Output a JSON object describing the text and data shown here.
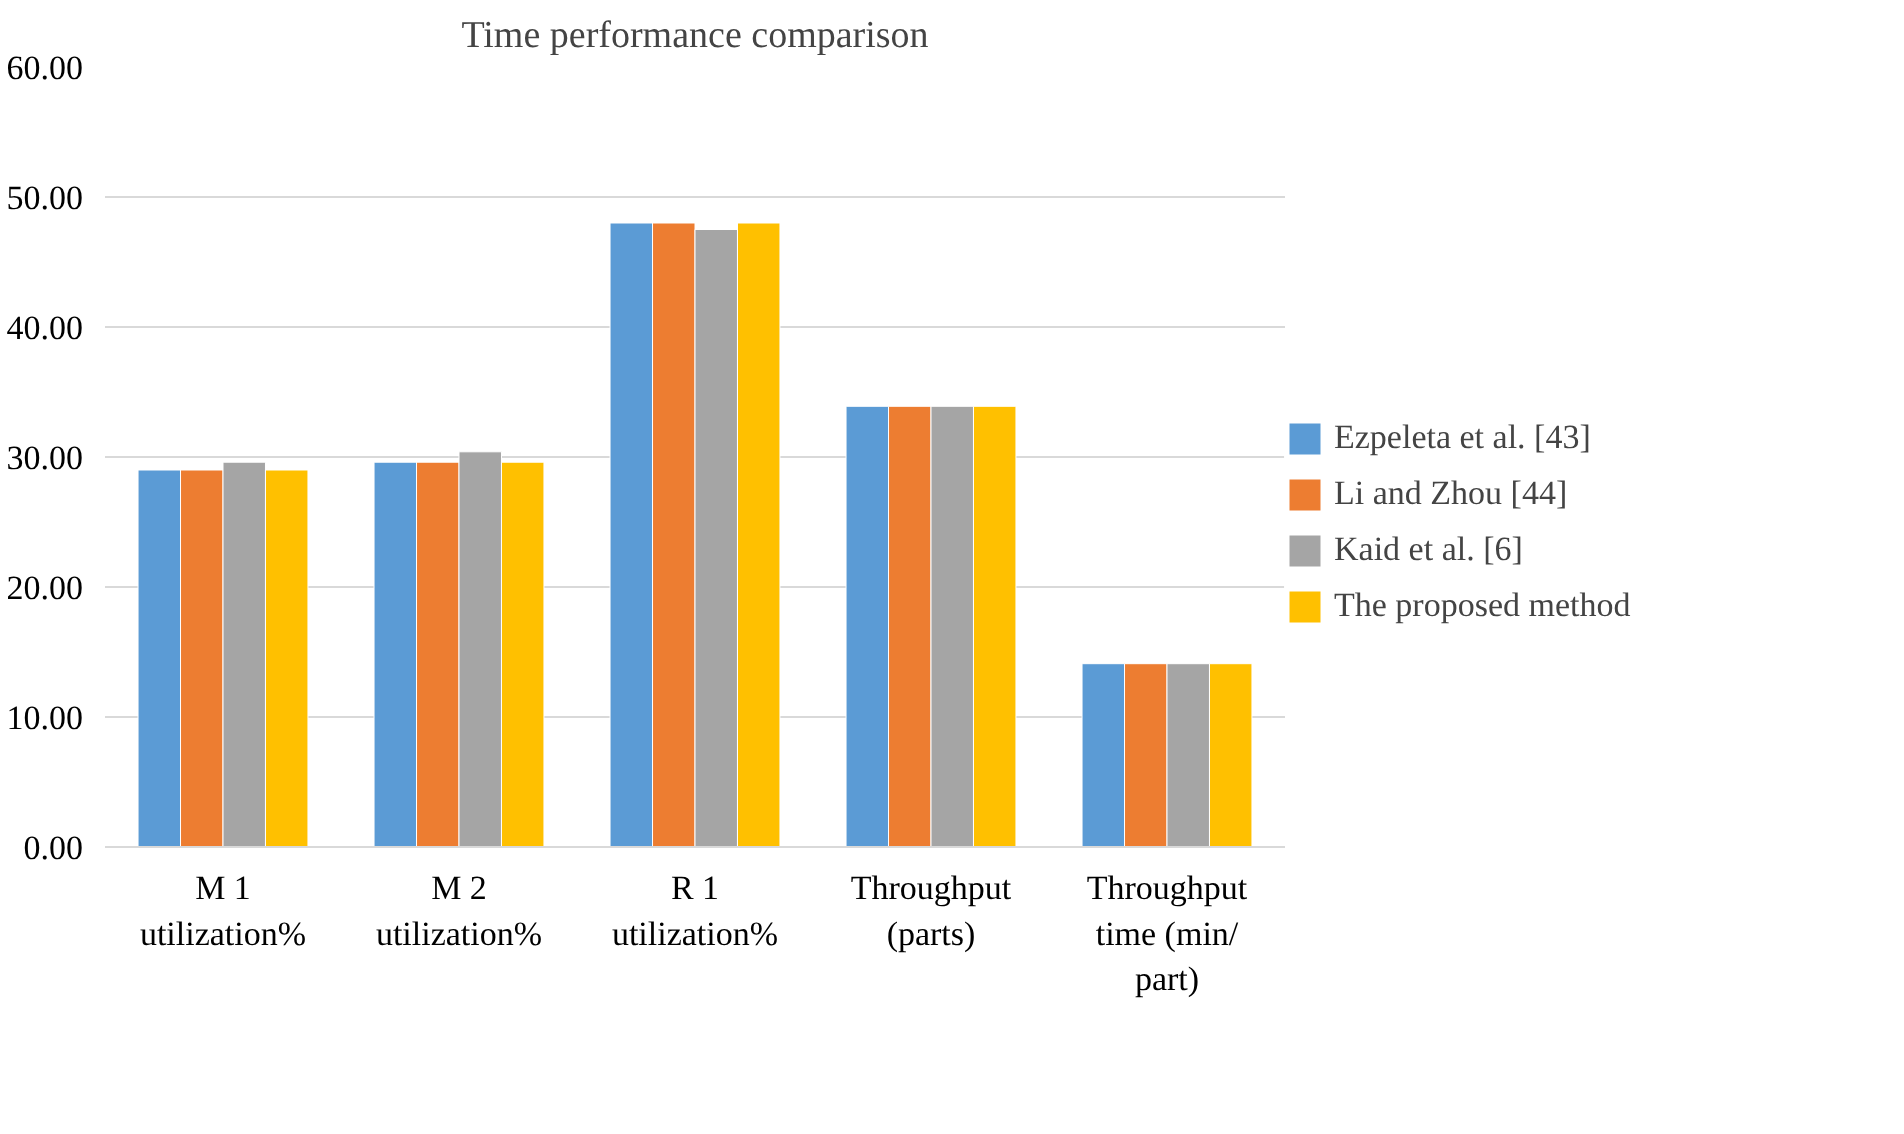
{
  "chart_data": {
    "type": "bar",
    "title": "Time performance comparison",
    "categories": [
      "M 1\nutilization%",
      "M 2\nutilization%",
      "R 1\nutilization%",
      "Throughput\n(parts)",
      "Throughput\ntime (min/\npart)"
    ],
    "series": [
      {
        "name": "Ezpeleta et al. [43]",
        "color": "#5b9bd5",
        "values": [
          29.0,
          29.6,
          48.0,
          33.9,
          14.1
        ]
      },
      {
        "name": "Li and Zhou [44]",
        "color": "#ed7d31",
        "values": [
          29.0,
          29.6,
          48.0,
          33.9,
          14.1
        ]
      },
      {
        "name": "Kaid et al. [6]",
        "color": "#a5a5a5",
        "values": [
          29.6,
          30.4,
          47.5,
          33.9,
          14.1
        ]
      },
      {
        "name": "The proposed method",
        "color": "#ffc000",
        "values": [
          29.0,
          29.6,
          48.0,
          33.9,
          14.1
        ]
      }
    ],
    "ylim": [
      0,
      60
    ],
    "yticks": [
      {
        "value": 0,
        "label": "0.00"
      },
      {
        "value": 10,
        "label": "10.00"
      },
      {
        "value": 20,
        "label": "20.00"
      },
      {
        "value": 30,
        "label": "30.00"
      },
      {
        "value": 40,
        "label": "40.00"
      },
      {
        "value": 50,
        "label": "50.00"
      },
      {
        "value": 60,
        "label": "60.00"
      }
    ],
    "grid": "y",
    "legend": "right"
  }
}
